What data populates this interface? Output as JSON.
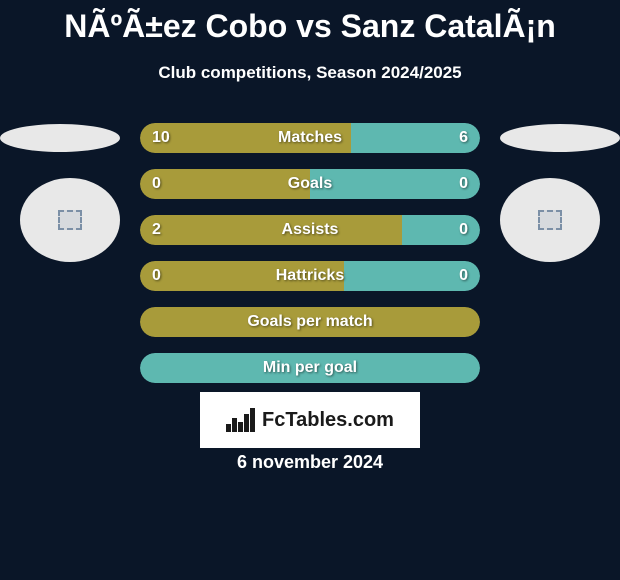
{
  "title": "NÃºÃ±ez Cobo vs Sanz CatalÃ¡n",
  "subtitle": "Club competitions, Season 2024/2025",
  "date": "6 november 2024",
  "logo_text": "FcTables.com",
  "colors": {
    "background": "#0a1628",
    "olive": "#a89b3a",
    "teal": "#5eb8b0",
    "oval": "#e8e8e8"
  },
  "stats": [
    {
      "label": "Matches",
      "left_value": "10",
      "right_value": "6",
      "left_percent": 62,
      "left_color": "#a89b3a",
      "right_color": "#5eb8b0",
      "has_values": true
    },
    {
      "label": "Goals",
      "left_value": "0",
      "right_value": "0",
      "left_percent": 50,
      "left_color": "#a89b3a",
      "right_color": "#5eb8b0",
      "has_values": true
    },
    {
      "label": "Assists",
      "left_value": "2",
      "right_value": "0",
      "left_percent": 77,
      "left_color": "#a89b3a",
      "right_color": "#5eb8b0",
      "has_values": true
    },
    {
      "label": "Hattricks",
      "left_value": "0",
      "right_value": "0",
      "left_percent": 60,
      "left_color": "#a89b3a",
      "right_color": "#5eb8b0",
      "has_values": true
    },
    {
      "label": "Goals per match",
      "left_value": "",
      "right_value": "",
      "left_percent": 100,
      "left_color": "#a89b3a",
      "right_color": "#a89b3a",
      "has_values": false
    },
    {
      "label": "Min per goal",
      "left_value": "",
      "right_value": "",
      "left_percent": 100,
      "left_color": "#5eb8b0",
      "right_color": "#5eb8b0",
      "has_values": false
    }
  ]
}
